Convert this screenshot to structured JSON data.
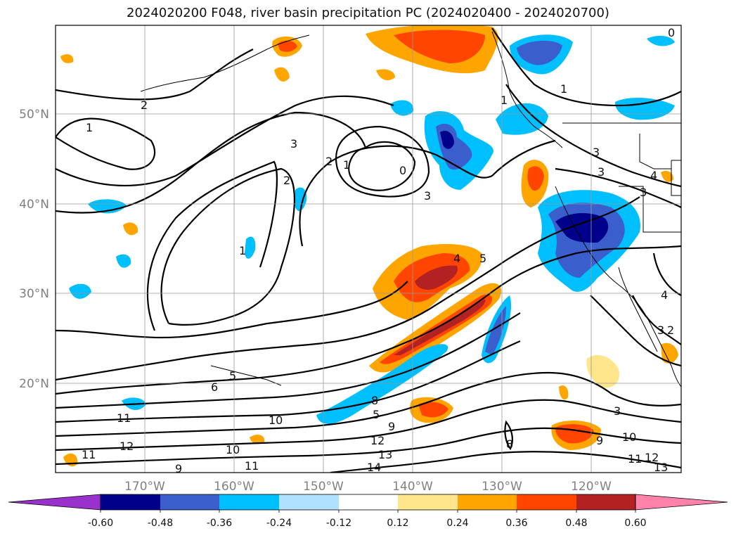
{
  "title": "2024020200 F048, river basin precipitation PC (2024020400 - 2024020700)",
  "map": {
    "lat_ticks": [
      "50°N",
      "40°N",
      "30°N",
      "20°N"
    ],
    "lon_ticks": [
      "170°W",
      "160°W",
      "150°W",
      "140°W",
      "130°W",
      "120°W"
    ],
    "grid": true
  },
  "colorbar": {
    "extend": "both",
    "colors": [
      "#9932CC",
      "#00008B",
      "#3A5FCD",
      "#00BFFF",
      "#B0E2FF",
      "#FFFFFF",
      "#FFE68C",
      "#FFA500",
      "#FF4500",
      "#B22222",
      "#FF82AB"
    ],
    "tick_labels": [
      "-0.60",
      "-0.48",
      "-0.36",
      "-0.24",
      "-0.12",
      "0.12",
      "0.24",
      "0.36",
      "0.48",
      "0.60"
    ]
  },
  "contour_labels": [
    "2",
    "1",
    "3",
    "2",
    "1",
    "0",
    "3",
    "2",
    "1",
    "4",
    "5",
    "1",
    "1",
    "0",
    "3",
    "3",
    "4",
    "3",
    "4",
    "3",
    "6",
    "5",
    "10",
    "8",
    "5",
    "9",
    "11",
    "10",
    "12",
    "13",
    "14",
    "11",
    "12",
    "9",
    "10",
    "11",
    "12",
    "13",
    "11",
    "9",
    "8",
    "3",
    "2"
  ]
}
